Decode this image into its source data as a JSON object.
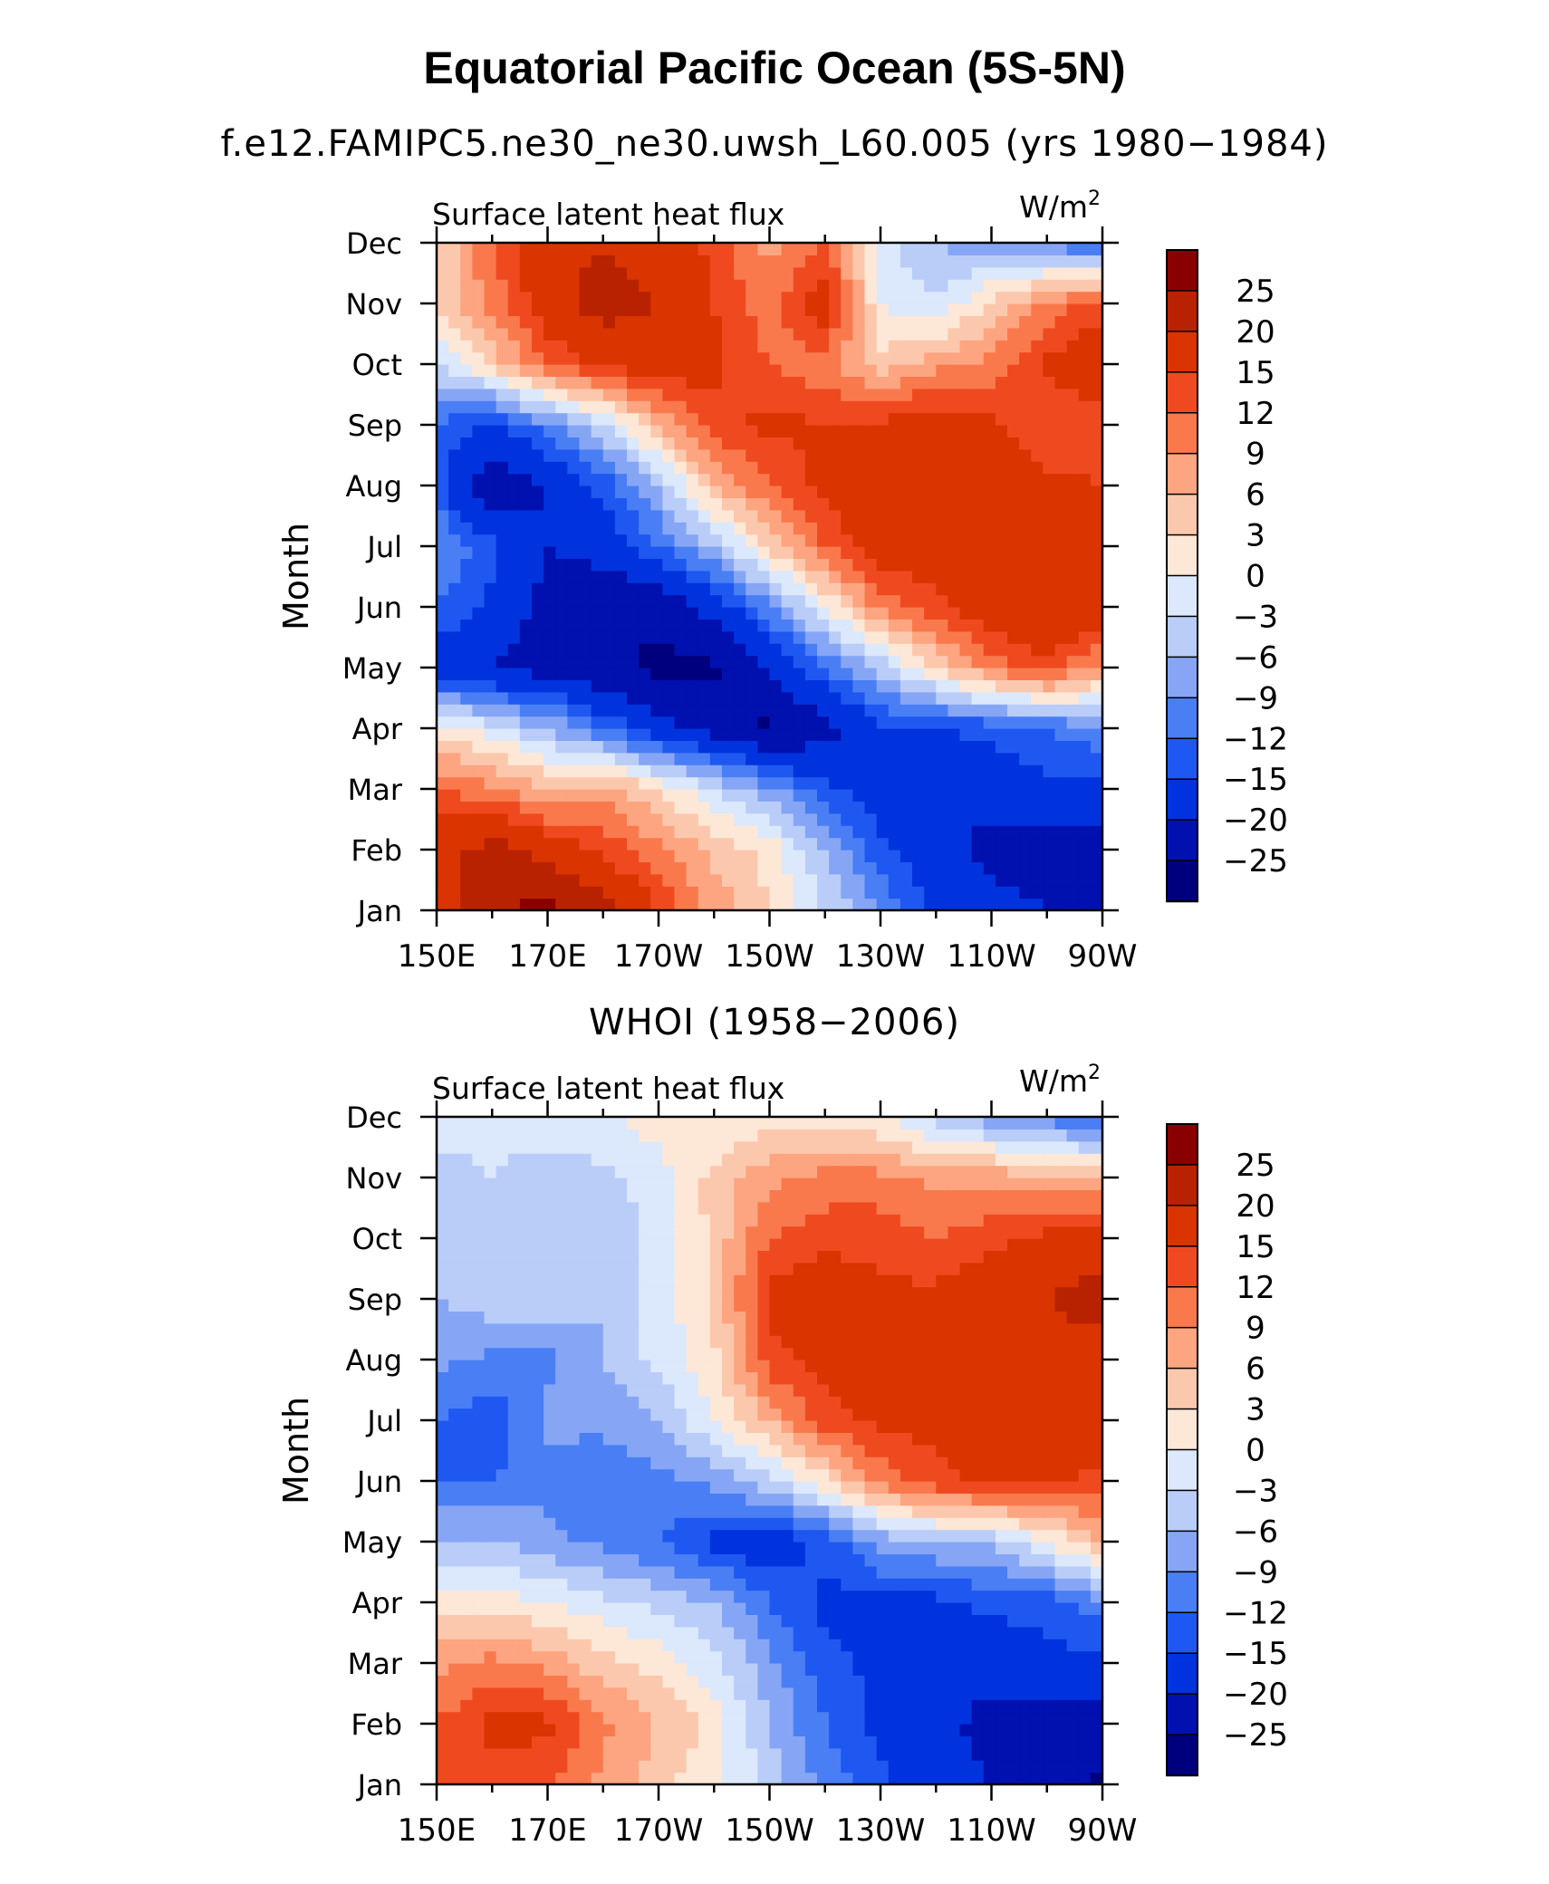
{
  "figure": {
    "title": "Equatorial Pacific Ocean (5S-5N)",
    "subtitle": "f.e12.FAMIPC5.ne30_ne30.uwsh_L60.005 (yrs 1980−1984)",
    "second_panel_title": "WHOI (1958−2006)"
  },
  "chart_data": [
    {
      "type": "heatmap",
      "title": "f.e12.FAMIPC5.ne30_ne30.uwsh_L60.005 (yrs 1980−1984)",
      "left_label": "Surface latent heat flux",
      "units": "W/m",
      "units_superscript": "2",
      "xlabel": "",
      "ylabel": "Month",
      "x_ticks": [
        "150E",
        "170E",
        "170W",
        "150W",
        "130W",
        "110W",
        "90W"
      ],
      "y_ticks": [
        "Jan",
        "Feb",
        "Mar",
        "Apr",
        "May",
        "Jun",
        "Jul",
        "Aug",
        "Sep",
        "Oct",
        "Nov",
        "Dec"
      ],
      "x": [
        150,
        160,
        170,
        180,
        190,
        200,
        210,
        220,
        230,
        240,
        250,
        260,
        270
      ],
      "months": [
        1,
        2,
        3,
        4,
        5,
        6,
        7,
        8,
        9,
        10,
        11,
        12
      ],
      "z": [
        [
          18,
          24,
          27,
          22,
          15,
          8,
          3,
          -3,
          -9,
          -16,
          -18,
          -20,
          -24
        ],
        [
          18,
          22,
          18,
          14,
          10,
          5,
          2,
          -6,
          -14,
          -18,
          -22,
          -22,
          -22
        ],
        [
          12,
          10,
          6,
          8,
          3,
          -3,
          -8,
          -14,
          -17,
          -18,
          -18,
          -16,
          -16
        ],
        [
          2,
          -2,
          -6,
          -12,
          -18,
          -22,
          -26,
          -22,
          -16,
          -15,
          -14,
          -12,
          -10
        ],
        [
          -18,
          -20,
          -22,
          -24,
          -26,
          -26,
          -20,
          -12,
          -5,
          3,
          10,
          14,
          8
        ],
        [
          -12,
          -16,
          -22,
          -24,
          -24,
          -18,
          -10,
          0,
          10,
          14,
          18,
          20,
          18
        ],
        [
          -8,
          -14,
          -20,
          -18,
          -12,
          -6,
          4,
          12,
          18,
          18,
          16,
          18,
          16
        ],
        [
          -14,
          -24,
          -20,
          -14,
          -6,
          6,
          12,
          16,
          20,
          18,
          18,
          16,
          15
        ],
        [
          -12,
          -16,
          -10,
          -4,
          6,
          14,
          16,
          15,
          16,
          18,
          16,
          12,
          14
        ],
        [
          -4,
          4,
          12,
          16,
          18,
          16,
          12,
          10,
          4,
          8,
          10,
          16,
          18
        ],
        [
          4,
          10,
          18,
          22,
          20,
          15,
          10,
          18,
          0,
          -3,
          4,
          10,
          14
        ],
        [
          2,
          12,
          18,
          20,
          18,
          14,
          8,
          12,
          -2,
          -6,
          -8,
          -10,
          -14
        ]
      ],
      "levels": [
        -25,
        -20,
        -15,
        -12,
        -9,
        -6,
        -3,
        0,
        3,
        6,
        9,
        12,
        15,
        20,
        25
      ],
      "colorbar_labels": [
        "25",
        "20",
        "15",
        "12",
        "9",
        "6",
        "3",
        "0",
        "−3",
        "−6",
        "−9",
        "−12",
        "−15",
        "−20",
        "−25"
      ],
      "colors": [
        "#00007f",
        "#0011b0",
        "#0033dd",
        "#1f58f0",
        "#4a7ef5",
        "#86a6f5",
        "#b9cdf8",
        "#dce8fb",
        "#fde7d7",
        "#fcc8ad",
        "#fca580",
        "#f9794d",
        "#ef4a1f",
        "#da3400",
        "#b82200",
        "#8a0000"
      ]
    },
    {
      "type": "heatmap",
      "title": "WHOI (1958−2006)",
      "left_label": "Surface latent heat flux",
      "units": "W/m",
      "units_superscript": "2",
      "xlabel": "",
      "ylabel": "Month",
      "x_ticks": [
        "150E",
        "170E",
        "170W",
        "150W",
        "130W",
        "110W",
        "90W"
      ],
      "y_ticks": [
        "Jan",
        "Feb",
        "Mar",
        "Apr",
        "May",
        "Jun",
        "Jul",
        "Aug",
        "Sep",
        "Oct",
        "Nov",
        "Dec"
      ],
      "x": [
        150,
        160,
        170,
        180,
        190,
        200,
        210,
        220,
        230,
        240,
        250,
        260,
        270
      ],
      "months": [
        1,
        2,
        3,
        4,
        5,
        6,
        7,
        8,
        9,
        10,
        11,
        12
      ],
      "z": [
        [
          14,
          14,
          12,
          8,
          4,
          1,
          -4,
          -10,
          -14,
          -18,
          -20,
          -22,
          -26
        ],
        [
          12,
          16,
          16,
          10,
          6,
          2,
          -6,
          -12,
          -16,
          -18,
          -22,
          -22,
          -22
        ],
        [
          8,
          10,
          8,
          4,
          2,
          -2,
          -8,
          -14,
          -16,
          -18,
          -18,
          -16,
          -16
        ],
        [
          1,
          2,
          0,
          -2,
          -4,
          -6,
          -12,
          -16,
          -16,
          -16,
          -14,
          -14,
          -10
        ],
        [
          -6,
          -6,
          -8,
          -10,
          -12,
          -16,
          -18,
          -14,
          -8,
          -6,
          -6,
          0,
          6
        ],
        [
          -12,
          -12,
          -10,
          -12,
          -10,
          -8,
          -4,
          2,
          10,
          14,
          16,
          16,
          14
        ],
        [
          -12,
          -14,
          -8,
          -8,
          -6,
          0,
          6,
          14,
          16,
          16,
          16,
          18,
          18
        ],
        [
          -8,
          -10,
          -10,
          -6,
          -2,
          2,
          14,
          16,
          18,
          16,
          18,
          18,
          18
        ],
        [
          -6,
          -4,
          -4,
          -6,
          -2,
          4,
          16,
          18,
          16,
          16,
          18,
          20,
          22
        ],
        [
          -3,
          -4,
          -6,
          -6,
          -2,
          4,
          12,
          14,
          14,
          12,
          14,
          16,
          18
        ],
        [
          -4,
          -3,
          -6,
          -4,
          -1,
          4,
          8,
          10,
          10,
          8,
          8,
          6,
          6
        ],
        [
          -2,
          -2,
          0,
          0,
          1,
          0,
          2,
          2,
          0,
          -4,
          -8,
          -10,
          -14
        ]
      ],
      "levels": [
        -25,
        -20,
        -15,
        -12,
        -9,
        -6,
        -3,
        0,
        3,
        6,
        9,
        12,
        15,
        20,
        25
      ],
      "colorbar_labels": [
        "25",
        "20",
        "15",
        "12",
        "9",
        "6",
        "3",
        "0",
        "−3",
        "−6",
        "−9",
        "−12",
        "−15",
        "−20",
        "−25"
      ],
      "colors": [
        "#00007f",
        "#0011b0",
        "#0033dd",
        "#1f58f0",
        "#4a7ef5",
        "#86a6f5",
        "#b9cdf8",
        "#dce8fb",
        "#fde7d7",
        "#fcc8ad",
        "#fca580",
        "#f9794d",
        "#ef4a1f",
        "#da3400",
        "#b82200",
        "#8a0000"
      ]
    }
  ]
}
